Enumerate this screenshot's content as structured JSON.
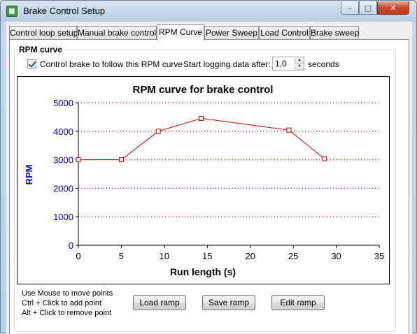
{
  "window": {
    "title": "Brake Control Setup",
    "buttons": {
      "minimize": "–",
      "maximize": "□",
      "close": "✕"
    }
  },
  "tabs": [
    {
      "label": "Control loop setup",
      "active": false
    },
    {
      "label": "Manual brake control",
      "active": false
    },
    {
      "label": "RPM Curve",
      "active": true
    },
    {
      "label": "Power Sweep",
      "active": false
    },
    {
      "label": "Load Control",
      "active": false
    },
    {
      "label": "Brake sweep",
      "active": false
    }
  ],
  "group": {
    "title": "RPM curve",
    "follow_checkbox": {
      "label": "Control brake to follow this RPM curve",
      "checked": true
    },
    "log_label": "Start logging data after:",
    "log_value": "1,0",
    "seconds_label": "seconds"
  },
  "chart_data": {
    "type": "line",
    "title": "RPM curve for brake control",
    "xlabel": "Run length (s)",
    "ylabel": "RPM",
    "xlim": [
      0,
      35
    ],
    "ylim": [
      0,
      5000
    ],
    "xticks": [
      "0",
      "5",
      "10",
      "15",
      "20",
      "25",
      "30",
      "35"
    ],
    "yticks": [
      "0",
      "1000",
      "2000",
      "3000",
      "4000",
      "5000"
    ],
    "grid": "horizontal dotted",
    "series": [
      {
        "color": "#c00000",
        "x": [
          0,
          5,
          9.3,
          14.3,
          24.5,
          28.6
        ],
        "y": [
          3000,
          3000,
          4000,
          4450,
          4040,
          3040
        ]
      }
    ],
    "colors": {
      "axis": "#000000",
      "ytick_labels": "#0000cc",
      "grid": "#c00000",
      "line": "#c00000"
    }
  },
  "hints": [
    "Use Mouse to move points",
    "Ctrl + Click to add point",
    "Alt + Click to remove point"
  ],
  "buttons": {
    "load": "Load ramp",
    "save": "Save ramp",
    "edit": "Edit ramp"
  }
}
